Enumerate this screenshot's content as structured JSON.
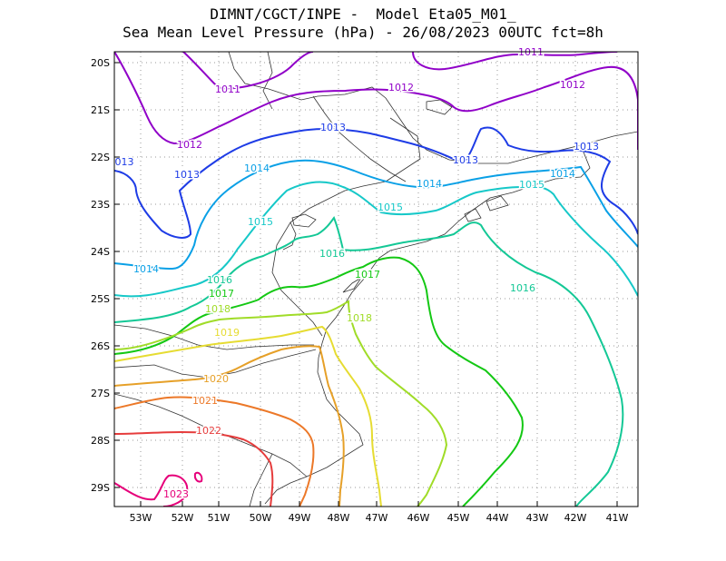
{
  "title": {
    "line1": "DIMNT/CGCT/INPE -  Model Eta05_M01_",
    "line2": "Sea Mean Level Pressure (hPa) - 26/08/2023 00UTC fct=8h"
  },
  "axes": {
    "lon_ticks": [
      "53W",
      "52W",
      "51W",
      "50W",
      "49W",
      "48W",
      "47W",
      "46W",
      "45W",
      "44W",
      "43W",
      "42W",
      "41W"
    ],
    "lat_ticks": [
      "20S",
      "21S",
      "22S",
      "23S",
      "24S",
      "25S",
      "26S",
      "27S",
      "28S",
      "29S"
    ]
  },
  "contours": [
    {
      "value": "1011",
      "color": "#9000c8"
    },
    {
      "value": "1012",
      "color": "#9000c8"
    },
    {
      "value": "1013",
      "color": "#1e3ce6"
    },
    {
      "value": "1014",
      "color": "#0aa0e6"
    },
    {
      "value": "1015",
      "color": "#16c8c8"
    },
    {
      "value": "1016",
      "color": "#14c896"
    },
    {
      "value": "1017",
      "color": "#14c814"
    },
    {
      "value": "1018",
      "color": "#a0dc28"
    },
    {
      "value": "1019",
      "color": "#e6dc32"
    },
    {
      "value": "1020",
      "color": "#e6a028"
    },
    {
      "value": "1021",
      "color": "#ec7828"
    },
    {
      "value": "1022",
      "color": "#e63c3c"
    },
    {
      "value": "1023",
      "color": "#e6007a"
    }
  ],
  "labels": [
    {
      "text": "1011",
      "ci": 0
    },
    {
      "text": "1011",
      "ci": 0
    },
    {
      "text": "1012",
      "ci": 1
    },
    {
      "text": "1012",
      "ci": 1
    },
    {
      "text": "1012",
      "ci": 1
    },
    {
      "text": "1013",
      "ci": 2
    },
    {
      "text": "1013",
      "ci": 2
    },
    {
      "text": "1013",
      "ci": 2
    },
    {
      "text": "1013",
      "ci": 2
    },
    {
      "text": "013",
      "ci": 2
    },
    {
      "text": "1014",
      "ci": 3
    },
    {
      "text": "1014",
      "ci": 3
    },
    {
      "text": "1014",
      "ci": 3
    },
    {
      "text": "1014",
      "ci": 3
    },
    {
      "text": "1015",
      "ci": 4
    },
    {
      "text": "1015",
      "ci": 4
    },
    {
      "text": "1015",
      "ci": 4
    },
    {
      "text": "1016",
      "ci": 5
    },
    {
      "text": "1016",
      "ci": 5
    },
    {
      "text": "1016",
      "ci": 5
    },
    {
      "text": "1017",
      "ci": 6
    },
    {
      "text": "1017",
      "ci": 6
    },
    {
      "text": "1018",
      "ci": 7
    },
    {
      "text": "1018",
      "ci": 7
    },
    {
      "text": "1019",
      "ci": 8
    },
    {
      "text": "1020",
      "ci": 9
    },
    {
      "text": "1021",
      "ci": 10
    },
    {
      "text": "1022",
      "ci": 11
    },
    {
      "text": "1023",
      "ci": 12
    }
  ]
}
